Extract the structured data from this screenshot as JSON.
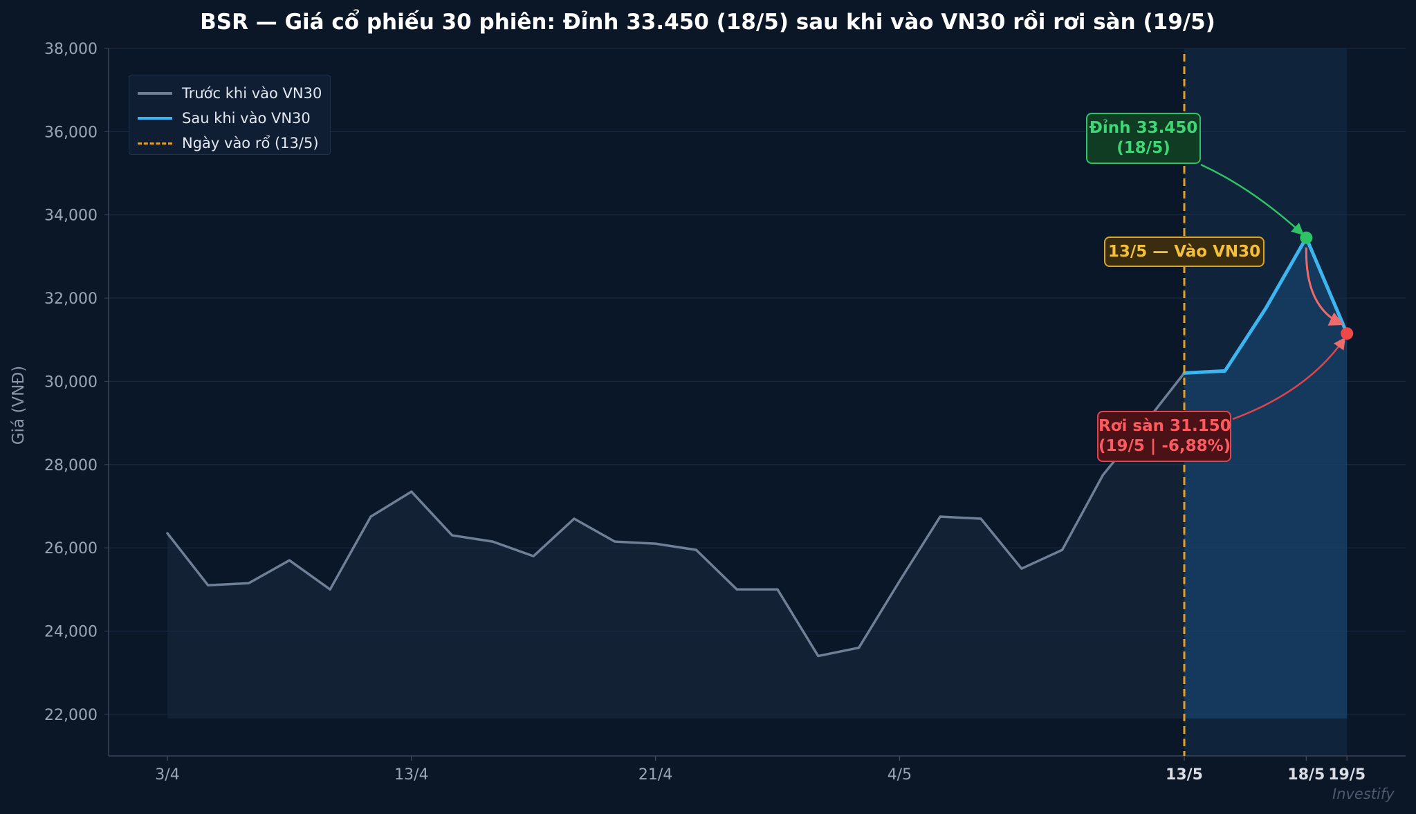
{
  "chart_data": {
    "type": "line",
    "title": "BSR — Giá cổ phiếu 30 phiên: Đỉnh 33.450 (18/5) sau khi vào VN30 rồi rơi sàn (19/5)",
    "xlabel": "",
    "ylabel": "Giá (VNĐ)",
    "ylim": [
      21000,
      38000
    ],
    "y_ticks": [
      "22,000",
      "24,000",
      "26,000",
      "28,000",
      "30,000",
      "32,000",
      "34,000",
      "36,000",
      "38,000"
    ],
    "y_tick_values": [
      22000,
      24000,
      26000,
      28000,
      30000,
      32000,
      34000,
      36000,
      38000
    ],
    "x_ticks": [
      {
        "label": "3/4",
        "index": 0,
        "bold": false
      },
      {
        "label": "13/4",
        "index": 6,
        "bold": false
      },
      {
        "label": "21/4",
        "index": 12,
        "bold": false
      },
      {
        "label": "4/5",
        "index": 18,
        "bold": false
      },
      {
        "label": "13/5",
        "index": 25,
        "bold": true
      },
      {
        "label": "18/5",
        "index": 28,
        "bold": true
      },
      {
        "label": "19/5",
        "index": 29,
        "bold": true
      }
    ],
    "grid": true,
    "legend_position": "top-left",
    "series": [
      {
        "name": "Trước khi vào VN30",
        "color": "#6f7f96",
        "x": [
          0,
          1,
          2,
          3,
          4,
          5,
          6,
          7,
          8,
          9,
          10,
          11,
          12,
          13,
          14,
          15,
          16,
          17,
          18,
          19,
          20,
          21,
          22,
          23,
          24,
          25
        ],
        "values": [
          26350,
          25100,
          25150,
          25700,
          25000,
          26750,
          27350,
          26300,
          26150,
          25800,
          26700,
          26150,
          26100,
          25950,
          25000,
          25000,
          23400,
          23600,
          25200,
          26750,
          26700,
          25500,
          25950,
          27750,
          28950,
          30200
        ]
      },
      {
        "name": "Sau khi vào VN30",
        "color": "#3cb5f0",
        "x": [
          25,
          26,
          27,
          28,
          29
        ],
        "values": [
          30200,
          30250,
          31750,
          33450,
          31150
        ]
      }
    ],
    "reference_line": {
      "name": "Ngày vào rổ (13/5)",
      "index": 25,
      "color": "#e0a030"
    },
    "annotations": {
      "peak": {
        "line1": "Đỉnh 33.450",
        "line2": "(18/5)",
        "index": 28,
        "value": 33450,
        "color": "#2ec466"
      },
      "entry": {
        "text": "13/5 — Vào VN30",
        "color": "#f4bf3a"
      },
      "floor": {
        "line1": "Rơi sàn 31.150",
        "line2": "(19/5 | -6,88%)",
        "index": 29,
        "value": 31150,
        "color": "#ef4848"
      }
    },
    "watermark": "Investify"
  }
}
